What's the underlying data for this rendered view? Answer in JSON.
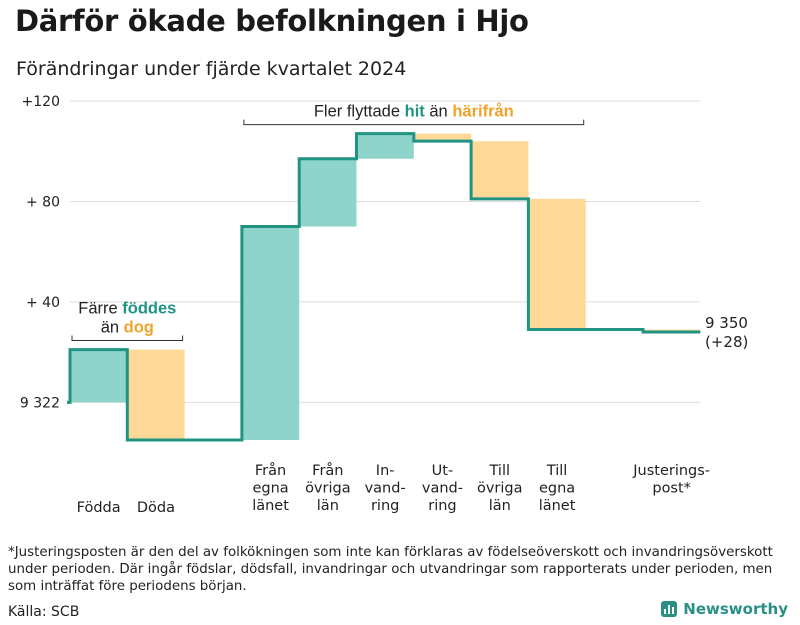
{
  "title": "Därför ökade befolkningen i Hjo",
  "subtitle": "Förändringar under fjärde kvartalet 2024",
  "footnote": "*Justeringsposten är den del av folkökningen som inte kan förklaras av födelseöverskott och invandringsöverskott under perioden. Där ingår födslar, dödsfall, invandringar och utvandringar som rapporterats under perioden, men som inträffat före periodens början.",
  "source": "Källa: SCB",
  "brand": "Newsworthy",
  "colors": {
    "increase": "#8fd4cb",
    "decrease": "#fdd896",
    "line": "#1f9483",
    "hit": "#1f9483",
    "harifran": "#f0a32b",
    "grid": "#dddddd"
  },
  "chart_data": {
    "type": "waterfall",
    "start_value": 9322,
    "end_value_label": "9 350",
    "end_change_label": "(+28)",
    "ylim": [
      -15,
      120
    ],
    "yticks": [
      {
        "value": 0,
        "label": "9 322"
      },
      {
        "value": 40,
        "label": "+ 40"
      },
      {
        "value": 80,
        "label": "+ 80"
      },
      {
        "value": 120,
        "label": "+120"
      }
    ],
    "categories": [
      {
        "label": "Födda",
        "lines": [
          "Födda"
        ],
        "change": 21,
        "start": 0,
        "end": 21
      },
      {
        "label": "Döda",
        "lines": [
          "Döda"
        ],
        "change": -36,
        "start": 21,
        "end": -15
      },
      {
        "label": "",
        "lines": [],
        "change": 0,
        "start": -15,
        "end": -15
      },
      {
        "label": "Från egna länet",
        "lines": [
          "Från",
          "egna",
          "länet"
        ],
        "change": 85,
        "start": -15,
        "end": 70
      },
      {
        "label": "Från övriga län",
        "lines": [
          "Från",
          "övriga",
          "län"
        ],
        "change": 27,
        "start": 70,
        "end": 97
      },
      {
        "label": "In-vandring",
        "lines": [
          "In-",
          "vand-",
          "ring"
        ],
        "change": 10,
        "start": 97,
        "end": 107
      },
      {
        "label": "Ut-vandring",
        "lines": [
          "Ut-",
          "vand-",
          "ring"
        ],
        "change": -3,
        "start": 107,
        "end": 104
      },
      {
        "label": "Till övriga län",
        "lines": [
          "Till",
          "övriga",
          "län"
        ],
        "change": -23,
        "start": 104,
        "end": 81
      },
      {
        "label": "Till egna länet",
        "lines": [
          "Till",
          "egna",
          "länet"
        ],
        "change": -52,
        "start": 81,
        "end": 29
      },
      {
        "label": "",
        "lines": [],
        "change": 0,
        "start": 29,
        "end": 29
      },
      {
        "label": "Justerings-post*",
        "lines": [
          "Justerings-",
          "post*"
        ],
        "change": -1,
        "start": 29,
        "end": 28
      }
    ],
    "annotations": [
      {
        "id": "fodelse",
        "from": 0,
        "to": 1,
        "value": 27,
        "lines": [
          [
            {
              "t": "Färre ",
              "s": "normal"
            },
            {
              "t": "föddes",
              "s": "hit"
            }
          ],
          [
            {
              "t": "än ",
              "s": "normal"
            },
            {
              "t": "dog",
              "s": "harifran"
            }
          ]
        ]
      },
      {
        "id": "flytt",
        "from": 3,
        "to": 8,
        "value": 113,
        "lines": [
          [
            {
              "t": "Fler flyttade ",
              "s": "normal"
            },
            {
              "t": "hit",
              "s": "hit"
            },
            {
              "t": " än ",
              "s": "normal"
            },
            {
              "t": "härifrån",
              "s": "harifran"
            }
          ]
        ]
      }
    ]
  }
}
